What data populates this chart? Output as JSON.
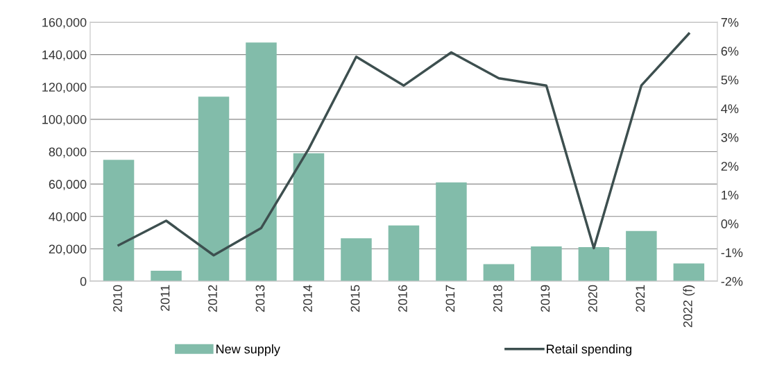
{
  "chart_data": {
    "type": "bar",
    "categories": [
      "2010",
      "2011",
      "2012",
      "2013",
      "2014",
      "2015",
      "2016",
      "2017",
      "2018",
      "2019",
      "2020",
      "2021",
      "2022 (f)"
    ],
    "series": [
      {
        "name": "New supply",
        "color": "#82bcaa",
        "values": [
          75000,
          6500,
          114000,
          147500,
          79000,
          26500,
          34500,
          61000,
          10500,
          21500,
          21000,
          31000,
          11000
        ]
      },
      {
        "name": "Retail spending",
        "type": "line",
        "axis": "y2",
        "color": "#3d4f4f",
        "values": [
          -0.75,
          0.1,
          -1.1,
          -0.15,
          2.6,
          5.8,
          4.8,
          5.95,
          5.05,
          4.8,
          -0.85,
          4.8,
          6.6
        ]
      }
    ],
    "ylim": [
      0,
      160000
    ],
    "yticks": [
      {
        "value": 0,
        "label": "0"
      },
      {
        "value": 20000,
        "label": "20,000"
      },
      {
        "value": 40000,
        "label": "40,000"
      },
      {
        "value": 60000,
        "label": "60,000"
      },
      {
        "value": 80000,
        "label": "80,000"
      },
      {
        "value": 100000,
        "label": "100,000"
      },
      {
        "value": 120000,
        "label": "120,000"
      },
      {
        "value": 140000,
        "label": "140,000"
      },
      {
        "value": 160000,
        "label": "160,000"
      }
    ],
    "y2lim": [
      -2,
      7
    ],
    "y2ticks": [
      {
        "value": -2,
        "label": "-2%"
      },
      {
        "value": -1,
        "label": "-1%"
      },
      {
        "value": 0,
        "label": "0%"
      },
      {
        "value": 1,
        "label": "1%"
      },
      {
        "value": 2,
        "label": "2%"
      },
      {
        "value": 3,
        "label": "3%"
      },
      {
        "value": 4,
        "label": "4%"
      },
      {
        "value": 5,
        "label": "5%"
      },
      {
        "value": 6,
        "label": "6%"
      },
      {
        "value": 7,
        "label": "7%"
      }
    ],
    "grid": "y",
    "legend": "bottom",
    "marker": "none",
    "line_style": "solid"
  }
}
